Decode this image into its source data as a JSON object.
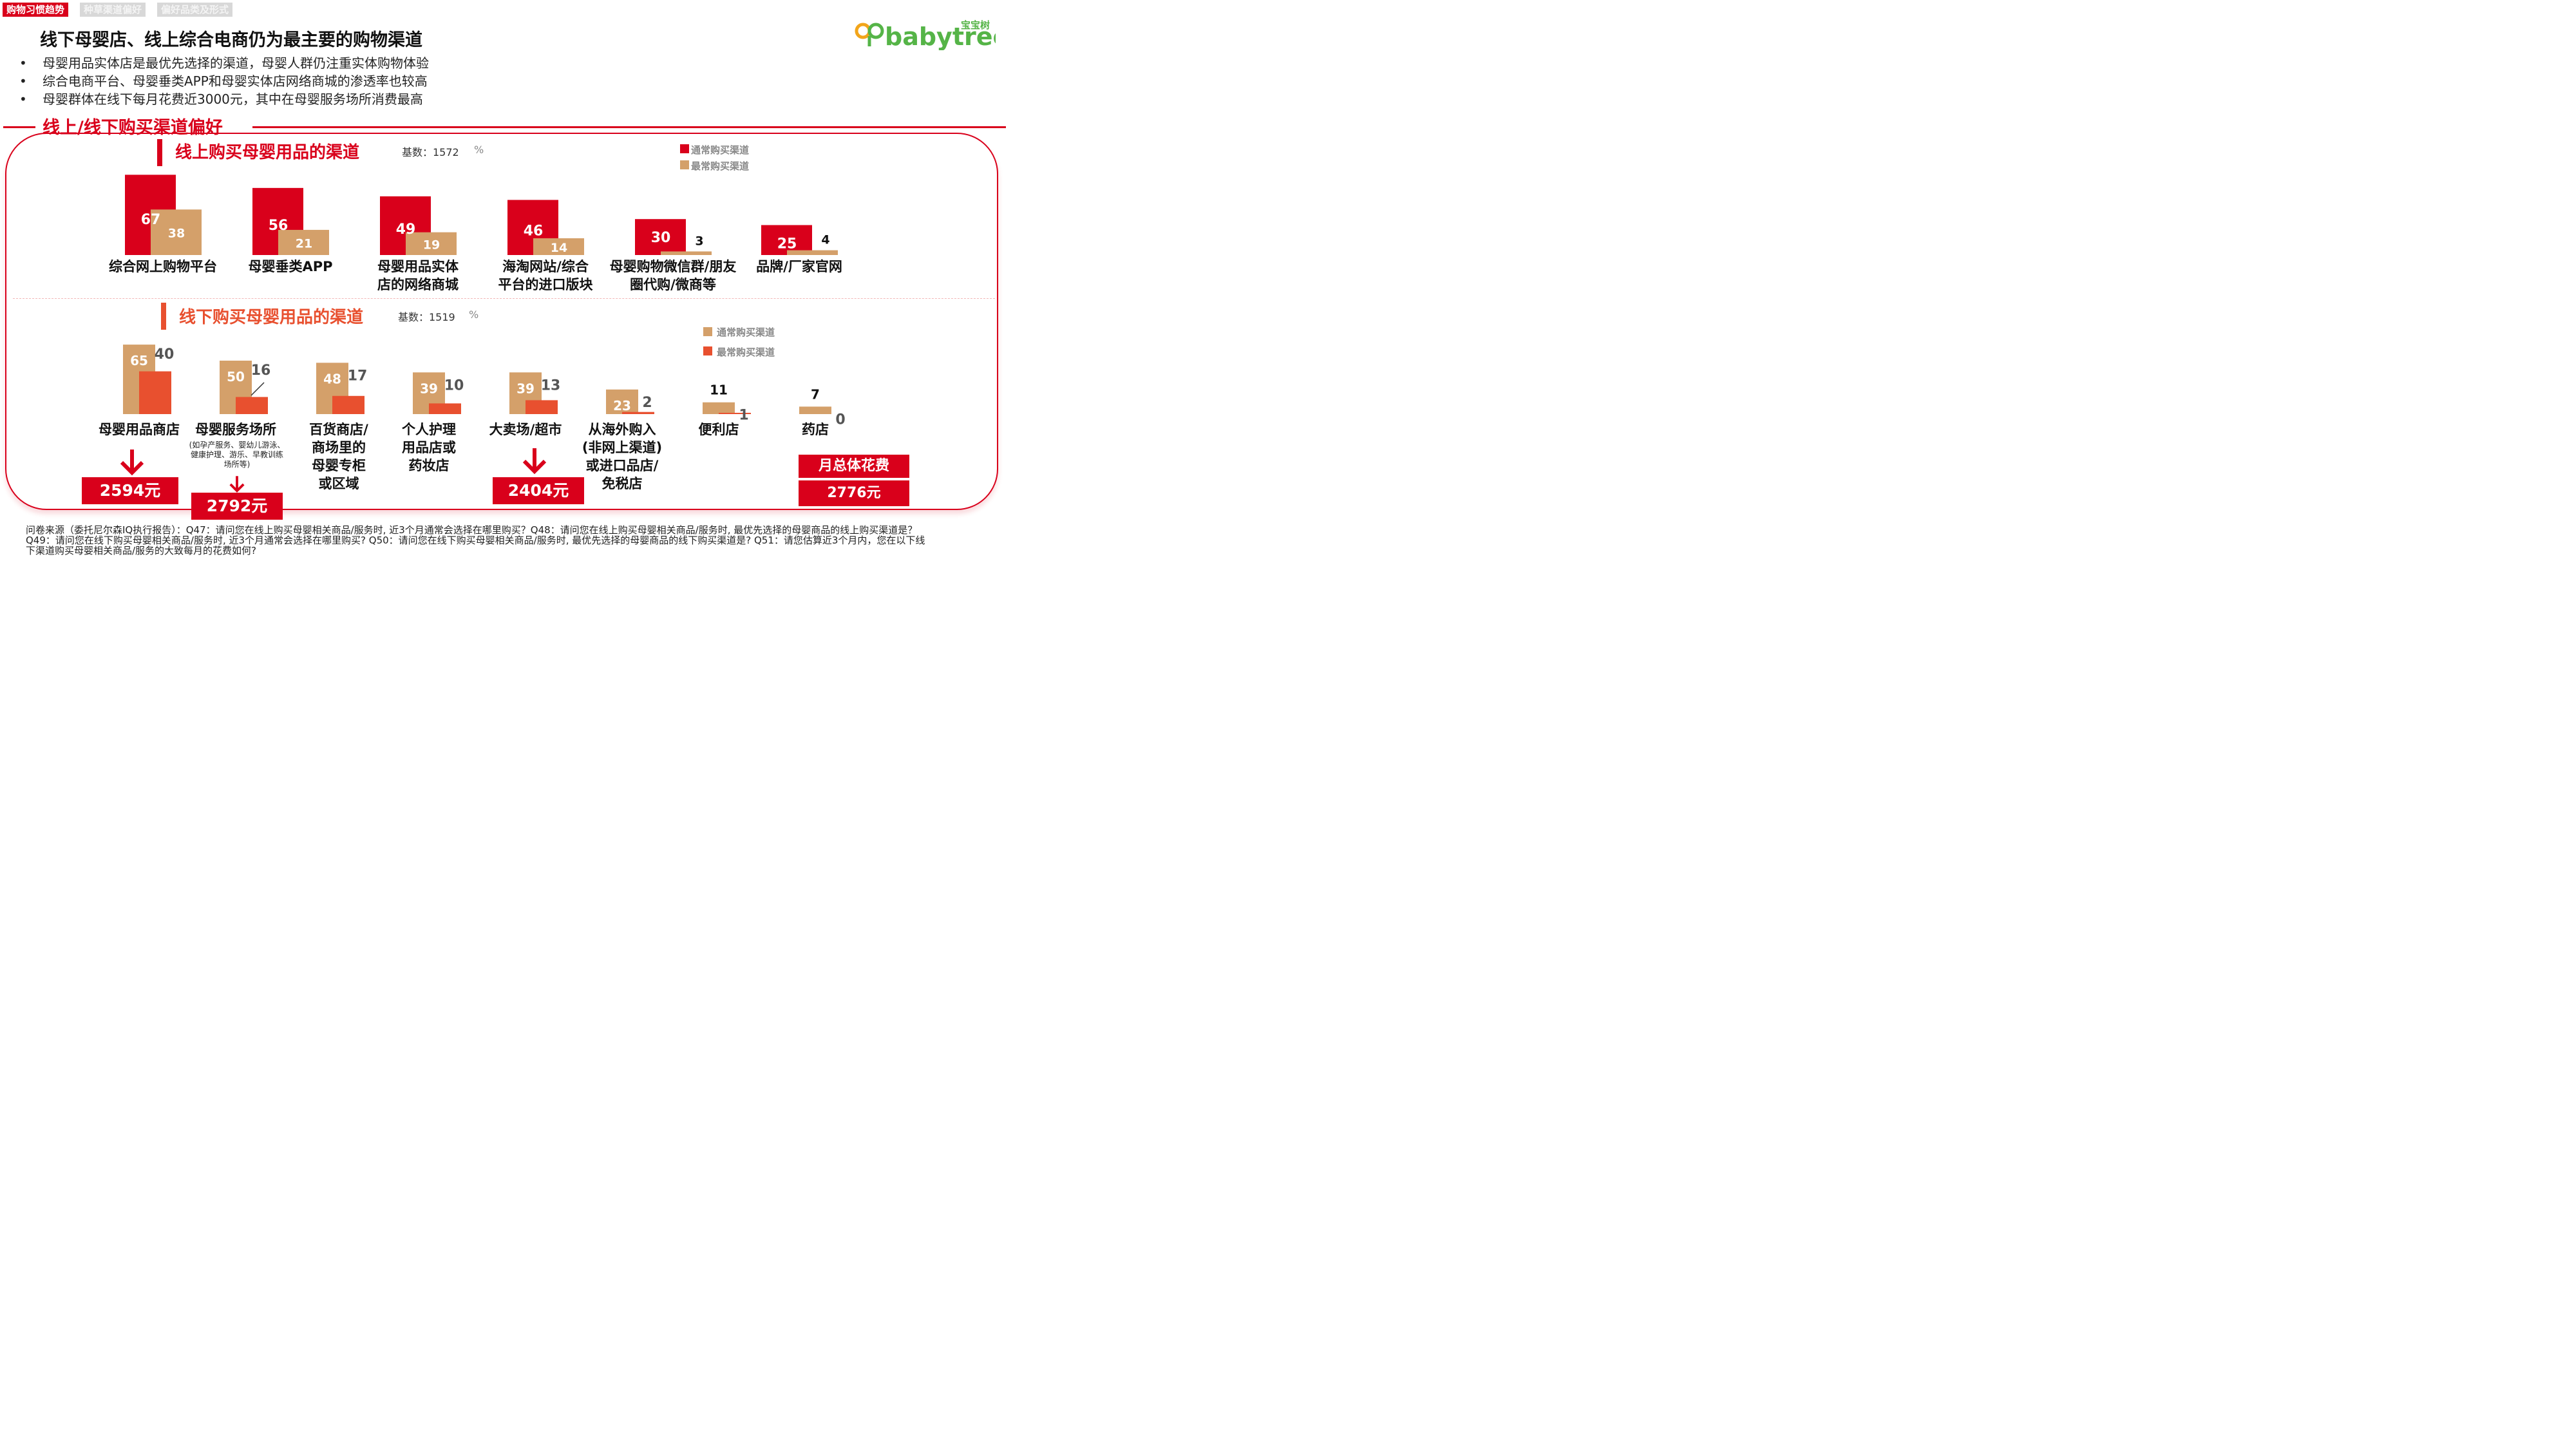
{
  "tabs": [
    {
      "label": "购物习惯趋势",
      "active": true
    },
    {
      "label": "种草渠道偏好",
      "active": false
    },
    {
      "label": "偏好品类及形式",
      "active": false
    }
  ],
  "page_title": "线下母婴店、线上综合电商仍为最主要的购物渠道",
  "bullets": [
    "母婴用品实体店是最优先选择的渠道，母婴人群仍注重实体购物体验",
    "综合电商平台、母婴垂类APP和母婴实体店网络商城的渗透率也较高",
    "母婴群体在线下每月花费近3000元，其中在母婴服务场所消费最高"
  ],
  "logo": {
    "cn": "宝宝树",
    "en": "babytree"
  },
  "section_title": "线上/线下购买渠道偏好",
  "colors": {
    "red": "#d9001b",
    "tan": "#d4a06a",
    "orange": "#e8502f"
  },
  "chart_data": [
    {
      "type": "bar",
      "title": "线上购买母婴用品的渠道",
      "base_label": "基数：1572",
      "unit": "%",
      "legend": [
        "通常购买渠道",
        "最常购买渠道"
      ],
      "categories": [
        "综合网上购物平台",
        "母婴垂类APP",
        "母婴用品实体店的网络商城",
        "海淘网站/综合平台的进口版块",
        "母婴购物微信群/朋友圈代购/微商等",
        "品牌/厂家官网"
      ],
      "category_lines": [
        [
          "综合网上购物平台"
        ],
        [
          "母婴垂类APP"
        ],
        [
          "母婴用品实体",
          "店的网络商城"
        ],
        [
          "海淘网站/综合",
          "平台的进口版块"
        ],
        [
          "母婴购物微信群/朋友",
          "圈代购/微商等"
        ],
        [
          "品牌/厂家官网"
        ]
      ],
      "series": [
        {
          "name": "通常购买渠道",
          "values": [
            67,
            56,
            49,
            46,
            30,
            25
          ]
        },
        {
          "name": "最常购买渠道",
          "values": [
            38,
            21,
            19,
            14,
            3,
            4
          ]
        }
      ]
    },
    {
      "type": "bar",
      "title": "线下购买母婴用品的渠道",
      "base_label": "基数：1519",
      "unit": "%",
      "legend": [
        "通常购买渠道",
        "最常购买渠道"
      ],
      "categories": [
        "母婴用品商店",
        "母婴服务场所",
        "百货商店/商场里的母婴专柜或区域",
        "个人护理用品店或药妆店",
        "大卖场/超市",
        "从海外购入(非网上渠道)或进口品店/免税店",
        "便利店",
        "药店"
      ],
      "category_lines": [
        [
          "母婴用品商店"
        ],
        [
          "母婴服务场所"
        ],
        [
          "百货商店/",
          "商场里的",
          "母婴专柜",
          "或区域"
        ],
        [
          "个人护理",
          "用品店或",
          "药妆店"
        ],
        [
          "大卖场/超市"
        ],
        [
          "从海外购入",
          "(非网上渠道)",
          "或进口品店/",
          "免税店"
        ],
        [
          "便利店"
        ],
        [
          "药店"
        ]
      ],
      "category_note": "(如孕产服务、婴幼儿游泳、健康护理、游乐、早教训练场所等)",
      "series": [
        {
          "name": "通常购买渠道",
          "values": [
            65,
            50,
            48,
            39,
            39,
            23,
            11,
            7
          ]
        },
        {
          "name": "最常购买渠道",
          "values": [
            40,
            16,
            17,
            10,
            13,
            2,
            1,
            0
          ]
        }
      ]
    }
  ],
  "spend": {
    "maternal_store": "2594元",
    "service_venue": "2792元",
    "supermarket": "2404元",
    "monthly_total_label": "月总体花费",
    "monthly_total_value": "2776元"
  },
  "footnote": "问卷来源（委托尼尔森IQ执行报告）：Q47：请问您在线上购买母婴相关商品/服务时, 近3个月通常会选择在哪里购买？Q48：请问您在线上购买母婴相关商品/服务时, 最优先选择的母婴商品的线上购买渠道是？ Q49：请问您在线下购买母婴相关商品/服务时, 近3个月通常会选择在哪里购买? Q50：请问您在线下购买母婴相关商品/服务时, 最优先选择的母婴商品的线下购买渠道是? Q51：请您估算近3个月内，您在以下线下渠道购买母婴相关商品/服务的大致每月的花费如何?"
}
